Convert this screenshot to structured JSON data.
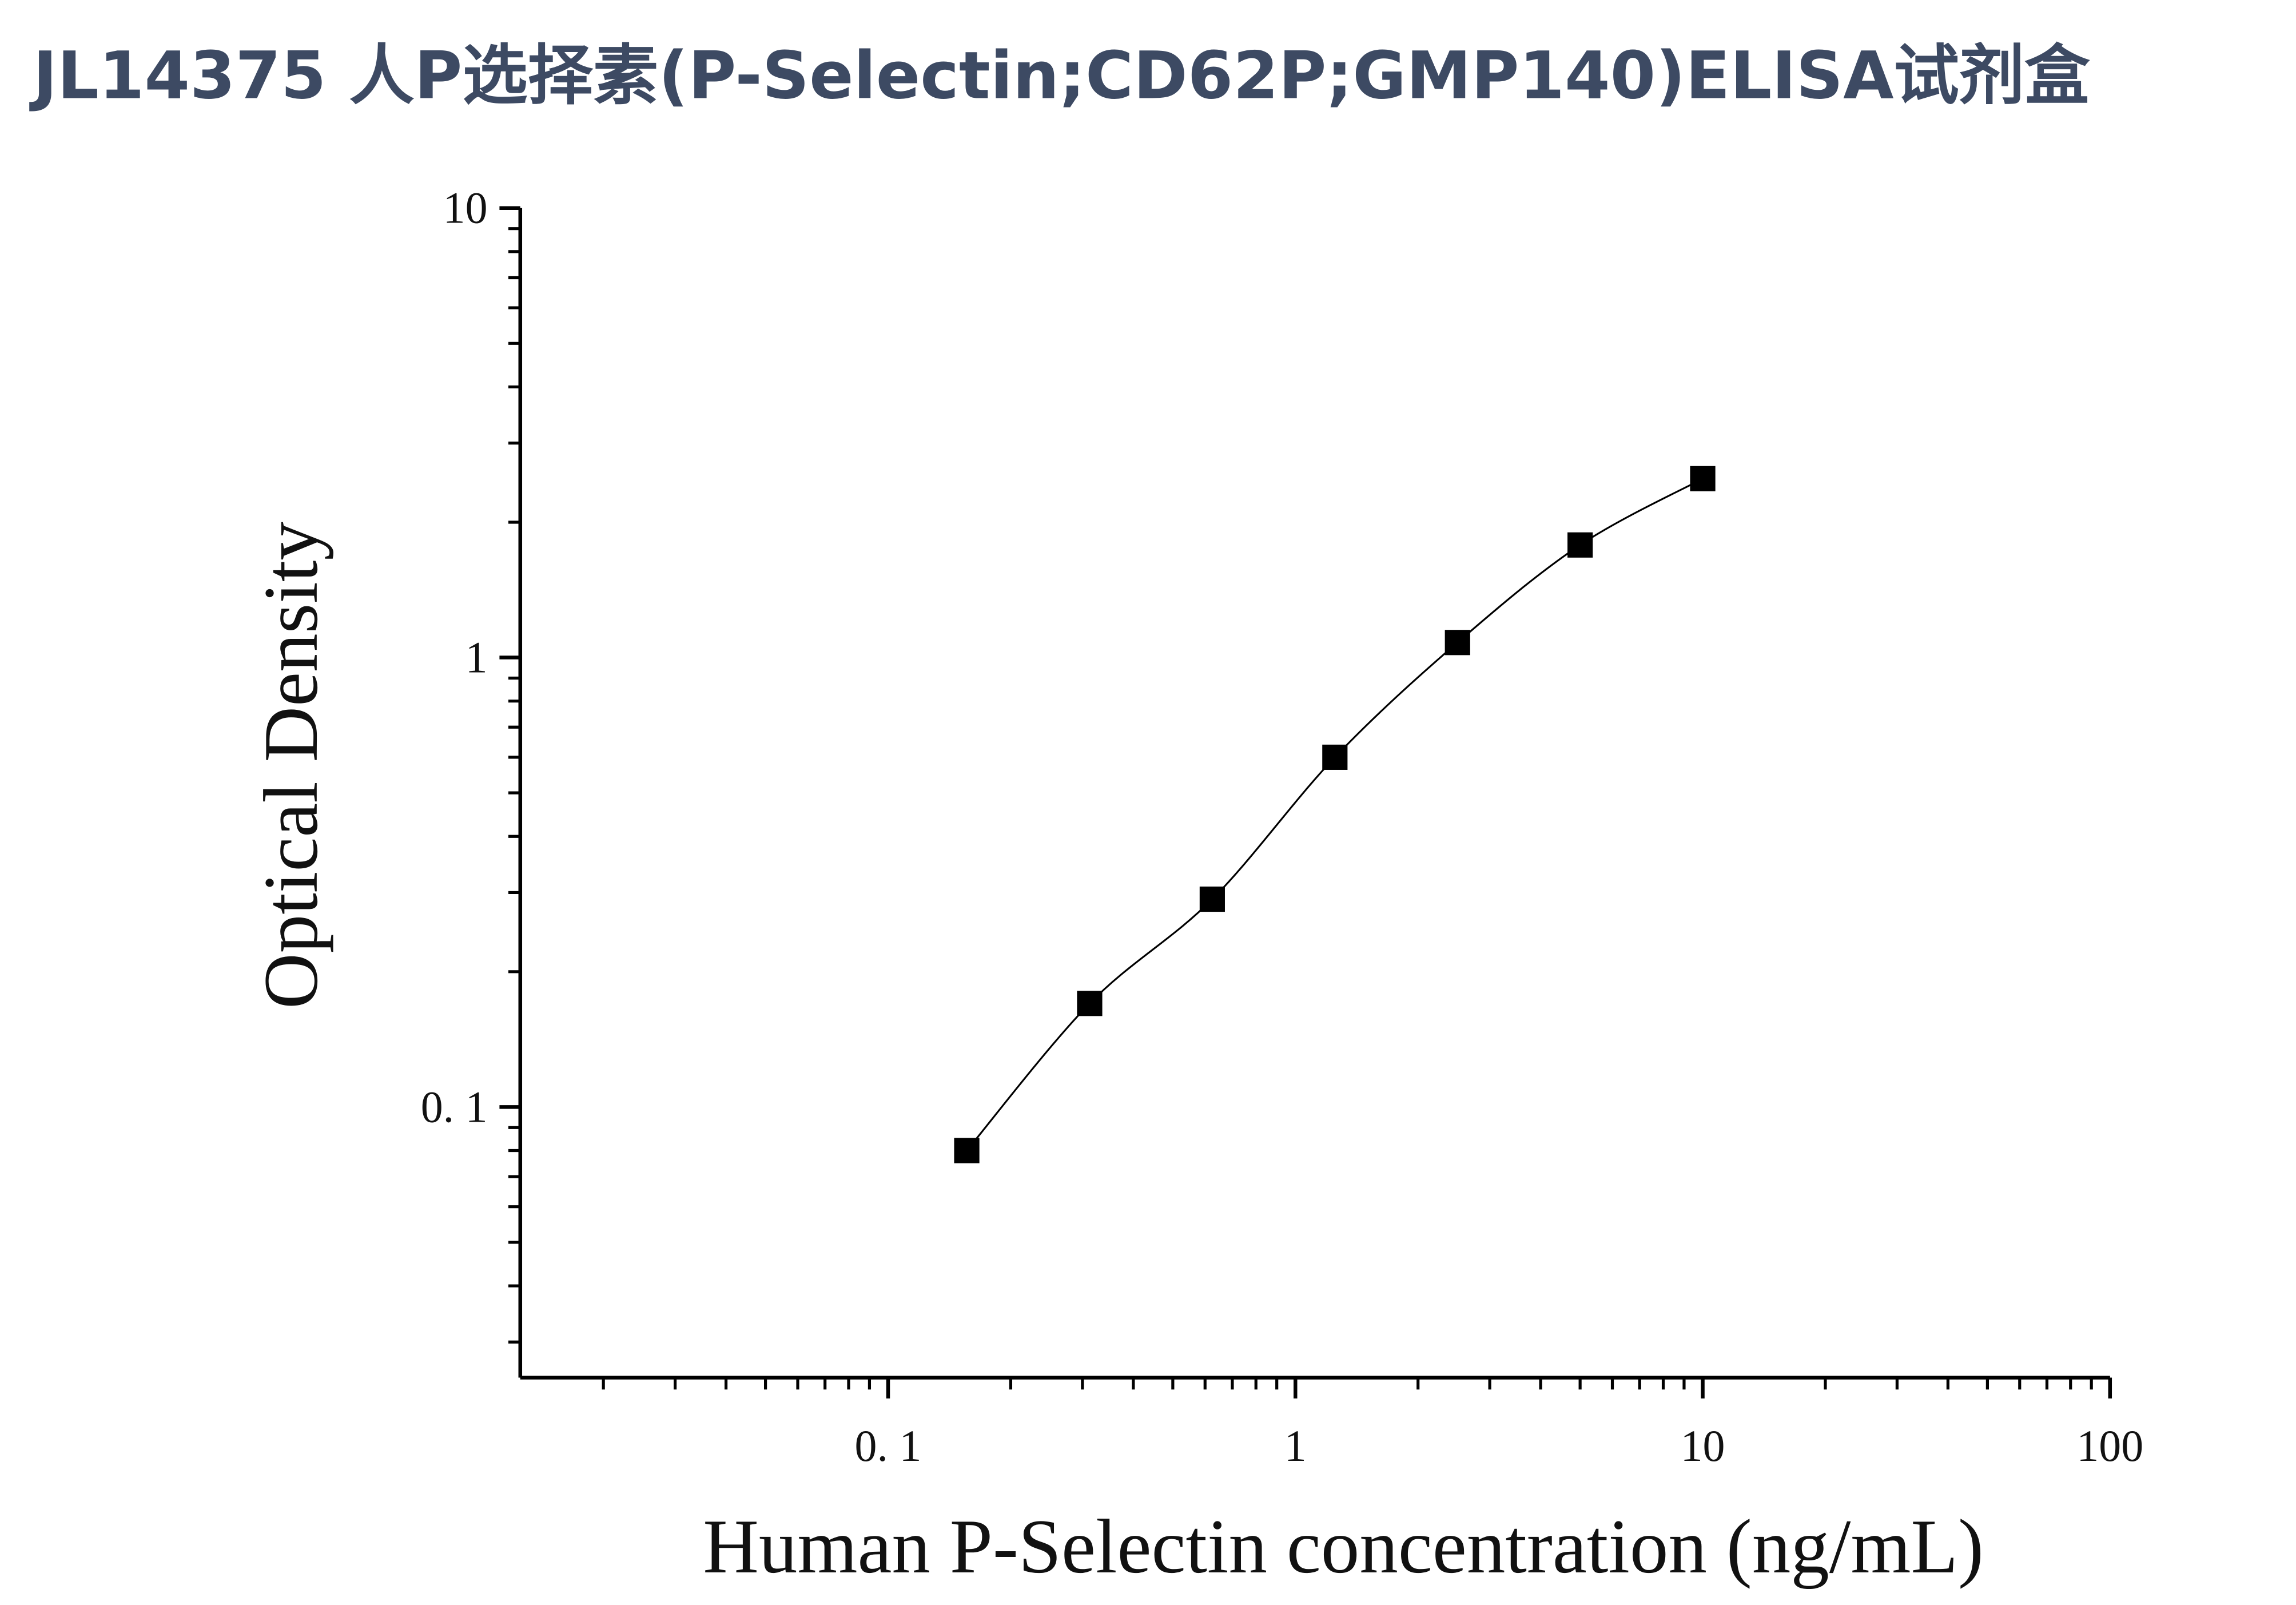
{
  "chart_data": {
    "type": "scatter",
    "title": "JL14375 人P选择素(P-Selectin;CD62P;GMP140)ELISA试剂盒",
    "x_label": "Human P-Selectin concentration (ng/mL)",
    "y_label": "Optical Density",
    "x_log": true,
    "y_log": true,
    "minor_ticks": true,
    "fit_curve": true,
    "color": "#000000",
    "x": [
      0.156,
      0.3125,
      0.625,
      1.25,
      2.5,
      5,
      10
    ],
    "values": [
      0.08,
      0.17,
      0.29,
      0.6,
      1.08,
      1.78,
      2.5
    ],
    "xlim": [
      0.0125,
      100
    ],
    "ylim": [
      0.025,
      10
    ],
    "xticks": [
      {
        "value": 0.1,
        "label": "0. 1"
      },
      1,
      10,
      100
    ],
    "yticks": [
      {
        "value": 0.1,
        "label": "0. 1"
      },
      1,
      10
    ]
  }
}
